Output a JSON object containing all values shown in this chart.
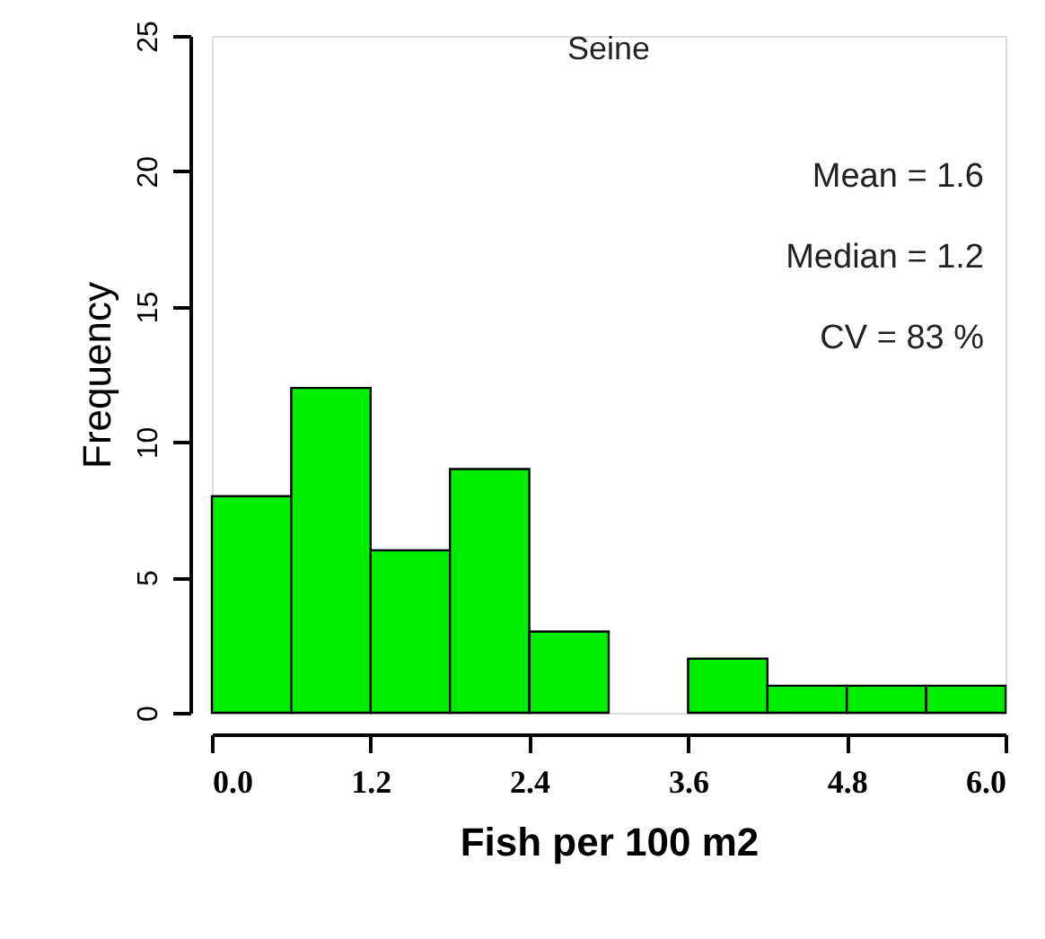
{
  "chart_data": {
    "type": "histogram",
    "title": "Seine",
    "xlabel": "Fish per 100 m2",
    "ylabel": "Frequency",
    "bins": [
      0,
      0.6,
      1.2,
      1.8,
      2.4,
      3.0,
      3.6,
      4.2,
      4.8,
      5.4,
      6.0
    ],
    "values": [
      8,
      12,
      6,
      9,
      3,
      0,
      2,
      1,
      1,
      1
    ],
    "color": "#00ee00",
    "xlim": [
      0,
      6
    ],
    "xticks": [
      {
        "value": 0,
        "label": "0.0"
      },
      {
        "value": 1.2,
        "label": "1.2"
      },
      {
        "value": 2.4,
        "label": "2.4"
      },
      {
        "value": 3.6,
        "label": "3.6"
      },
      {
        "value": 4.8,
        "label": "4.8"
      },
      {
        "value": 6,
        "label": "6.0"
      }
    ],
    "ylim": [
      0,
      25
    ],
    "yticks": [
      0,
      5,
      10,
      15,
      20,
      25
    ],
    "annotations": [
      "Mean = 1.6",
      "Median = 1.2",
      "CV = 83 %"
    ],
    "grid": false
  }
}
